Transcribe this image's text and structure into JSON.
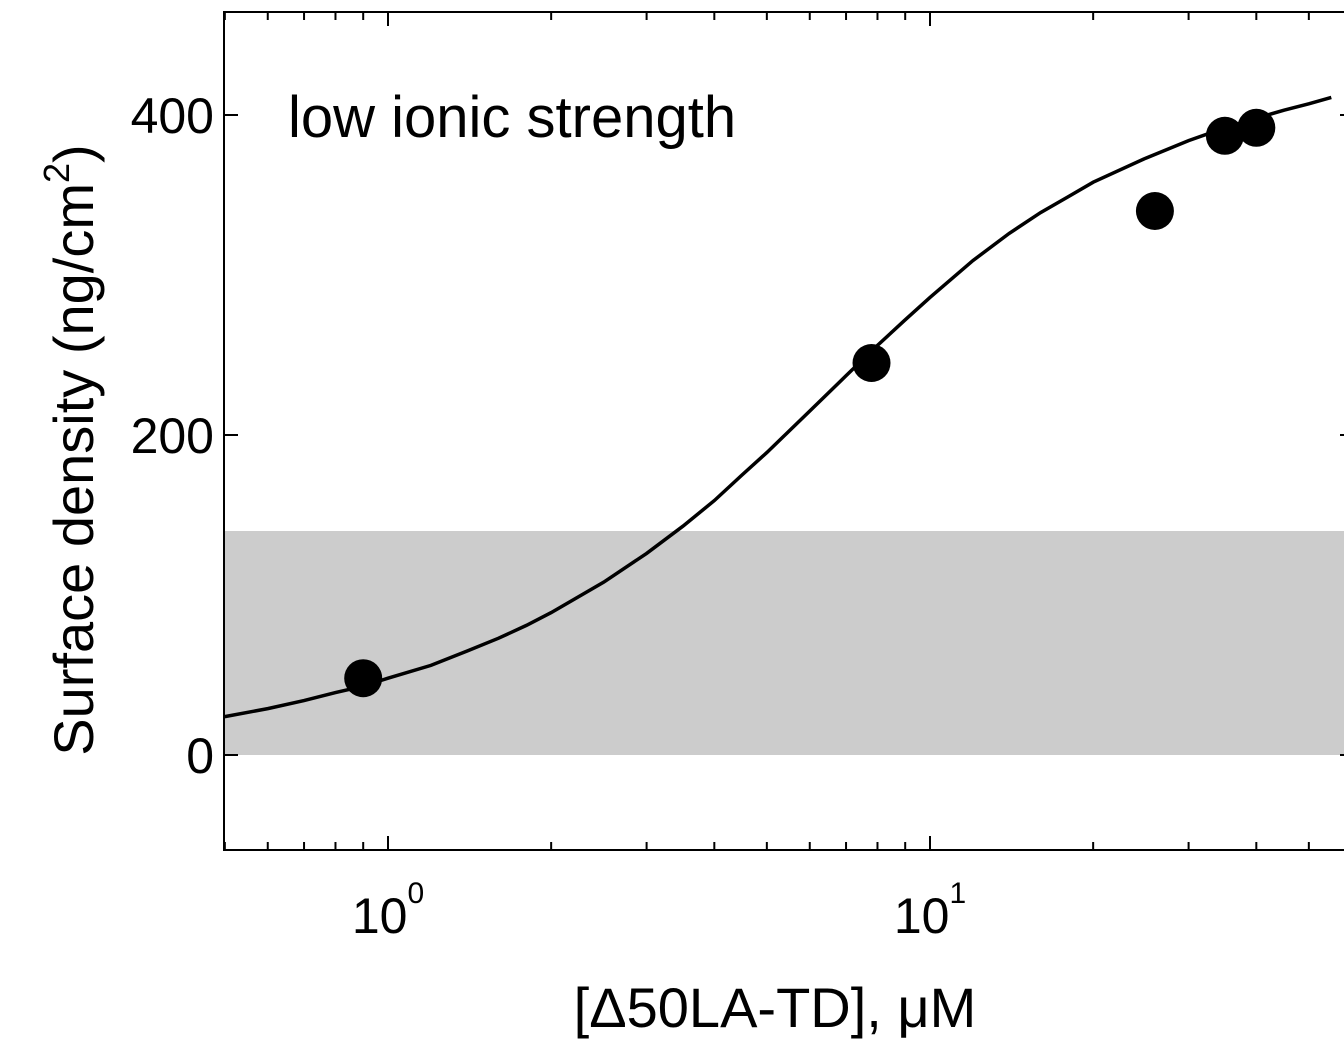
{
  "chart_data": {
    "type": "scatter",
    "annotation": "low ionic strength",
    "xlabel": "[Δ50LA-TD], μM",
    "ylabel": "Surface density (ng/cm",
    "ylabel_sup": "2",
    "ylabel_close": ")",
    "x_scale": "log",
    "xlim": [
      0.5,
      55
    ],
    "ylim": [
      -60,
      465
    ],
    "x_ticks": [
      {
        "value": 1,
        "base": "10",
        "exp": "0"
      },
      {
        "value": 10,
        "base": "10",
        "exp": "1"
      }
    ],
    "y_ticks": [
      {
        "value": 0,
        "label": "0"
      },
      {
        "value": 200,
        "label": "200"
      },
      {
        "value": 400,
        "label": "400"
      }
    ],
    "grid": false,
    "shaded_band": {
      "y_min": 0,
      "y_max": 140,
      "color": "#cccccc"
    },
    "points": [
      {
        "x": 0.9,
        "y": 48
      },
      {
        "x": 7.8,
        "y": 245
      },
      {
        "x": 26,
        "y": 340
      },
      {
        "x": 35,
        "y": 387
      },
      {
        "x": 40,
        "y": 392
      }
    ],
    "fit_curve": {
      "x": [
        0.5,
        0.6,
        0.7,
        0.8,
        0.9,
        1.0,
        1.2,
        1.4,
        1.6,
        1.8,
        2.0,
        2.5,
        3.0,
        3.5,
        4.0,
        4.5,
        5.0,
        6.0,
        7.0,
        8.0,
        9.0,
        10.0,
        12.0,
        14.0,
        16.0,
        18.0,
        20.0,
        25.0,
        30.0,
        35.0,
        40.0,
        45.0,
        50.0,
        55.0
      ],
      "y": [
        24,
        29,
        34,
        39,
        43,
        48,
        56,
        65,
        73,
        81,
        89,
        108,
        126,
        143,
        159,
        175,
        189,
        215,
        237,
        256,
        272,
        286,
        309,
        326,
        339,
        349,
        358,
        373,
        384,
        392,
        398,
        403,
        407,
        411
      ]
    },
    "colors": {
      "marker": "#000000",
      "line": "#000000",
      "band": "#cccccc",
      "axis": "#000000"
    }
  }
}
